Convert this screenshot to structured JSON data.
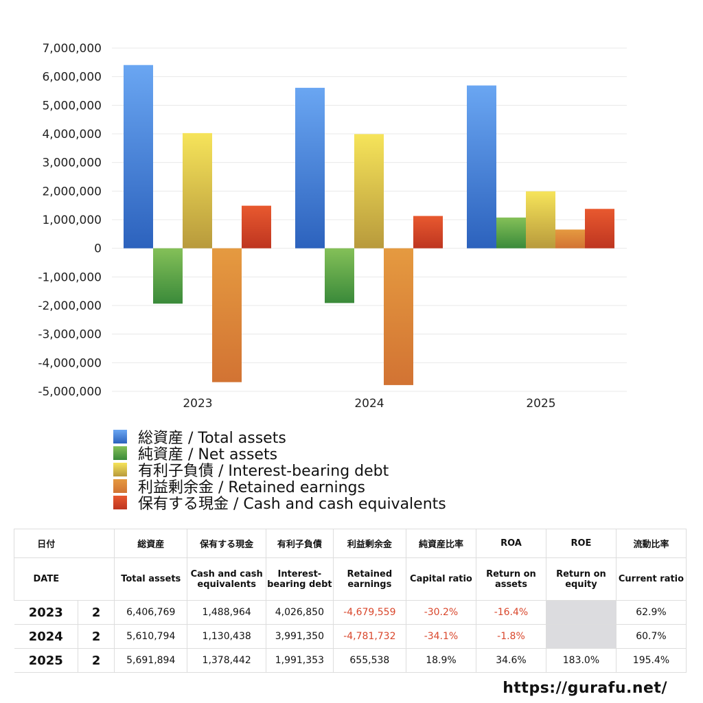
{
  "chart_data": {
    "type": "bar",
    "categories": [
      "2023",
      "2024",
      "2025"
    ],
    "ylim": [
      -5000000,
      7000000
    ],
    "yticks": [
      7000000,
      6000000,
      5000000,
      4000000,
      3000000,
      2000000,
      1000000,
      0,
      -1000000,
      -2000000,
      -3000000,
      -4000000,
      -5000000
    ],
    "ytick_labels": [
      "7,000,000",
      "6,000,000",
      "5,000,000",
      "4,000,000",
      "3,000,000",
      "2,000,000",
      "1,000,000",
      "0",
      "-1,000,000",
      "-2,000,000",
      "-3,000,000",
      "-4,000,000",
      "-5,000,000"
    ],
    "grid": true,
    "legend_position": "bottom-left",
    "series": [
      {
        "name": "総資産 / Total assets",
        "values": [
          6406769,
          5610794,
          5691894
        ],
        "colors": [
          "#6aa6f2",
          "#2c62bd"
        ]
      },
      {
        "name": "純資産 / Net assets",
        "values": [
          -1934844,
          -1913281,
          1075768
        ],
        "colors": [
          "#84c058",
          "#3a8a3a"
        ]
      },
      {
        "name": "有利子負債 / Interest-bearing debt",
        "values": [
          4026850,
          3991350,
          1991353
        ],
        "colors": [
          "#f6e45a",
          "#b89a3c"
        ]
      },
      {
        "name": "利益剰余金 / Retained earnings",
        "values": [
          -4679559,
          -4781732,
          655538
        ],
        "colors": [
          "#e59a40",
          "#d27333"
        ]
      },
      {
        "name": "保有する現金 /  Cash and cash equivalents",
        "values": [
          1488964,
          1130438,
          1378442
        ],
        "colors": [
          "#e8592f",
          "#be3520"
        ]
      }
    ]
  },
  "table": {
    "header_jp": [
      "日付",
      "",
      "総資産",
      "保有する現金",
      "有利子負債",
      "利益剰余金",
      "純資産比率",
      "ROA",
      "ROE",
      "流動比率"
    ],
    "header_en": [
      "DATE",
      "",
      "Total assets",
      "Cash and cash equivalents",
      "Interest-bearing debt",
      "Retained earnings",
      "Capital ratio",
      "Return on assets",
      "Return on equity",
      "Current ratio"
    ],
    "rows": [
      [
        "2023",
        "2",
        "6,406,769",
        "1,488,964",
        "4,026,850",
        "-4,679,559",
        "-30.2%",
        "-16.4%",
        "",
        "62.9%"
      ],
      [
        "2024",
        "2",
        "5,610,794",
        "1,130,438",
        "3,991,350",
        "-4,781,732",
        "-34.1%",
        "-1.8%",
        "",
        "60.7%"
      ],
      [
        "2025",
        "2",
        "5,691,894",
        "1,378,442",
        "1,991,353",
        "655,538",
        "18.9%",
        "34.6%",
        "183.0%",
        "195.4%"
      ]
    ]
  },
  "footer": {
    "url": "https://gurafu.net/"
  }
}
